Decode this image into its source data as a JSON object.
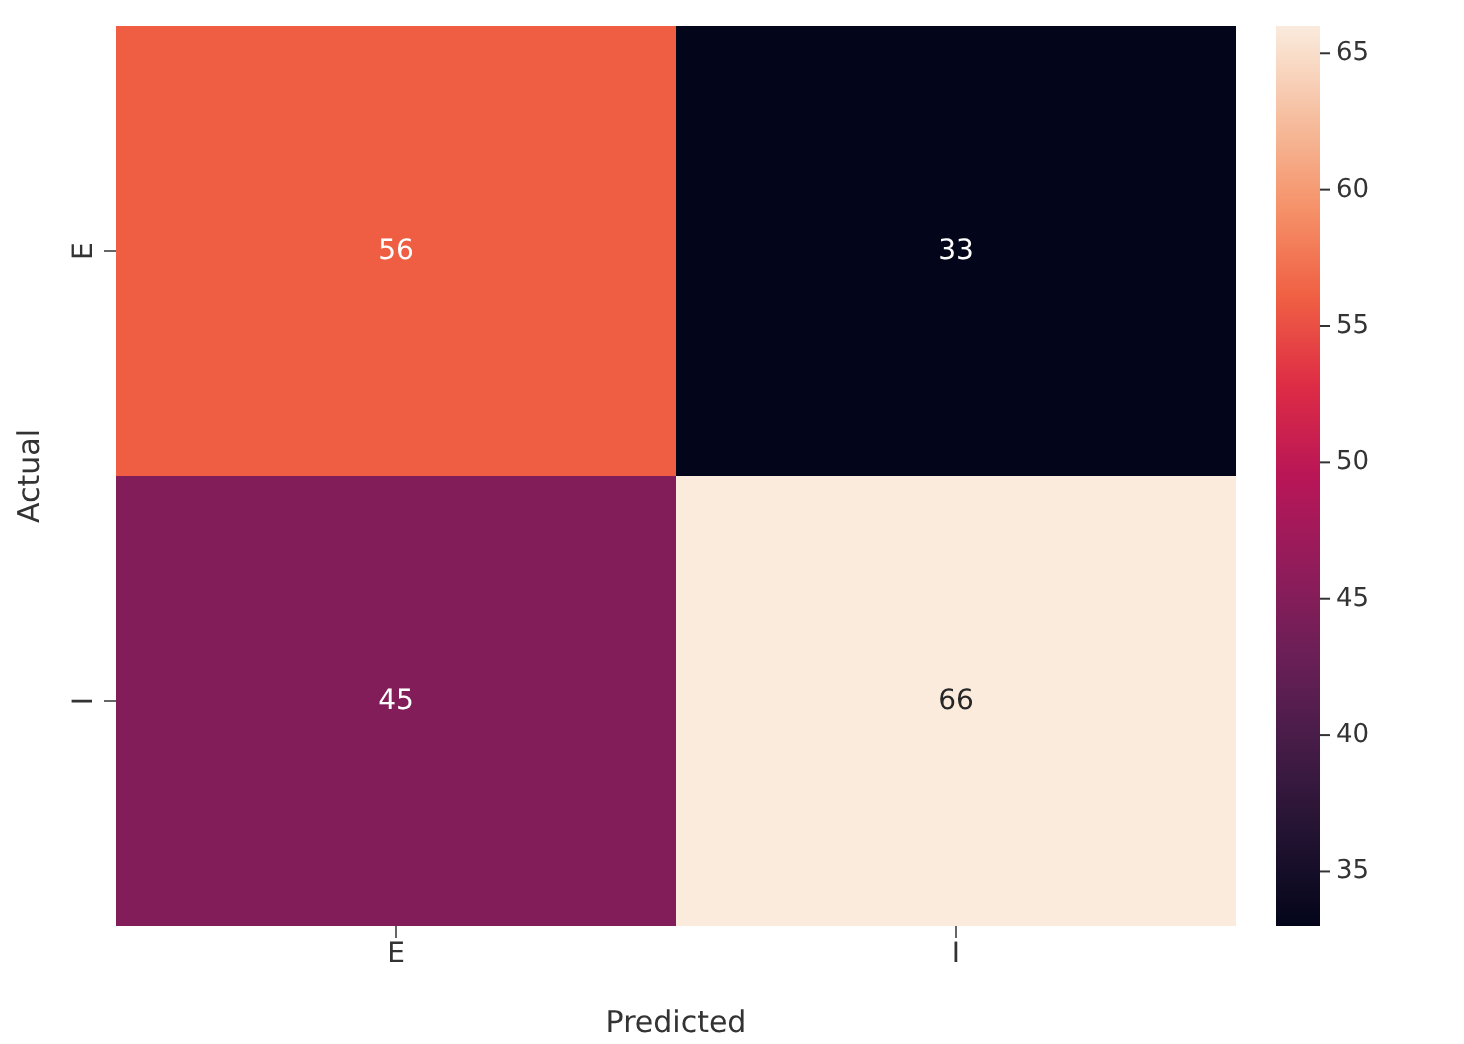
{
  "chart_data": {
    "type": "heatmap",
    "xlabel": "Predicted",
    "ylabel": "Actual",
    "categories": [
      "E",
      "I"
    ],
    "y_categories": [
      "E",
      "I"
    ],
    "cells": [
      [
        56,
        33
      ],
      [
        45,
        66
      ]
    ],
    "clim": [
      33,
      66
    ],
    "cticks": [
      35,
      40,
      45,
      50,
      55,
      60,
      65
    ],
    "data_labels": true
  }
}
